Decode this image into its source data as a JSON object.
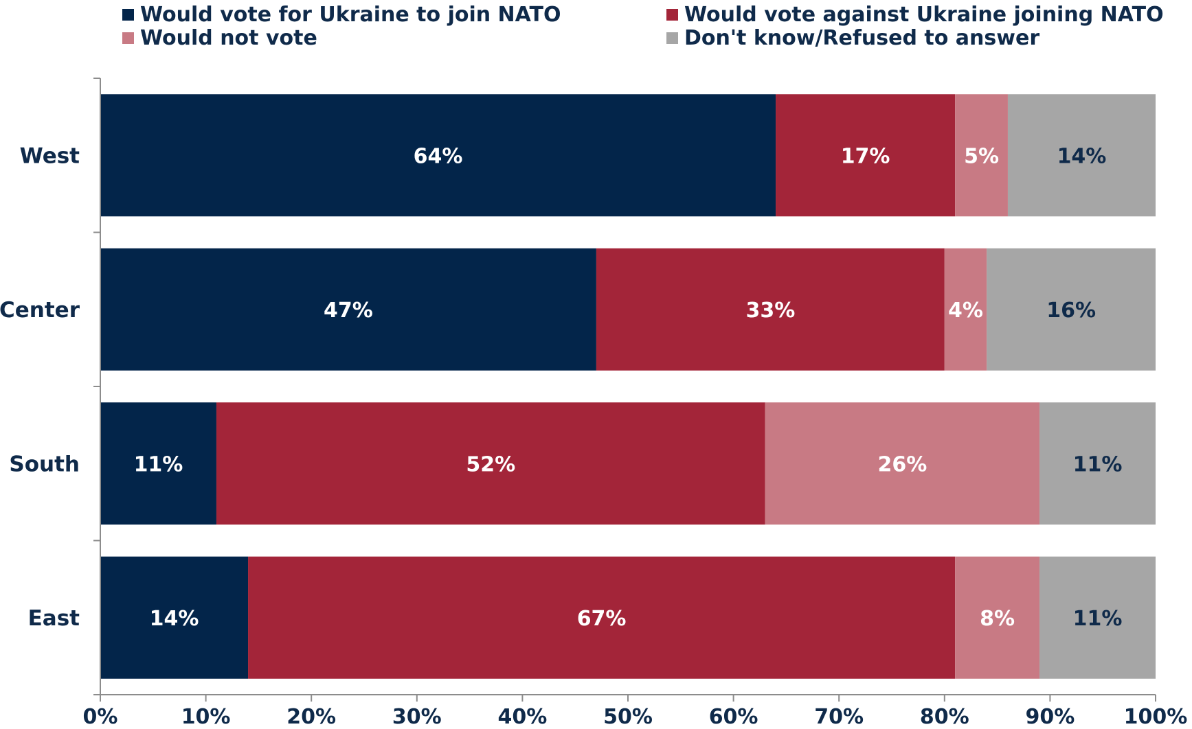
{
  "chart_data": {
    "type": "bar",
    "orientation": "horizontal",
    "stacked": true,
    "categories": [
      "West",
      "Center",
      "South",
      "East"
    ],
    "series": [
      {
        "name": "Would vote for Ukraine to join NATO",
        "color": "#03254a",
        "label_color": "#ffffff",
        "values": [
          64,
          47,
          11,
          14
        ]
      },
      {
        "name": "Would vote against Ukraine joining NATO",
        "color": "#a32539",
        "label_color": "#ffffff",
        "values": [
          17,
          33,
          52,
          67
        ]
      },
      {
        "name": "Would not vote",
        "color": "#c87a84",
        "label_color": "#ffffff",
        "values": [
          5,
          4,
          26,
          8
        ]
      },
      {
        "name": "Don't know/Refused to answer",
        "color": "#a6a6a6",
        "label_color": "#0f2a4a",
        "values": [
          14,
          16,
          11,
          11
        ]
      }
    ],
    "data_labels": [
      [
        "64%",
        "17%",
        "5%",
        "14%"
      ],
      [
        "47%",
        "33%",
        "4%",
        "16%"
      ],
      [
        "11%",
        "52%",
        "26%",
        "11%"
      ],
      [
        "14%",
        "67%",
        "8%",
        "11%"
      ]
    ],
    "xlim": [
      0,
      100
    ],
    "xticks": [
      0,
      10,
      20,
      30,
      40,
      50,
      60,
      70,
      80,
      90,
      100
    ],
    "xtick_labels": [
      "0%",
      "10%",
      "20%",
      "30%",
      "40%",
      "50%",
      "60%",
      "70%",
      "80%",
      "90%",
      "100%"
    ],
    "grid": false,
    "legend_position": "top"
  }
}
